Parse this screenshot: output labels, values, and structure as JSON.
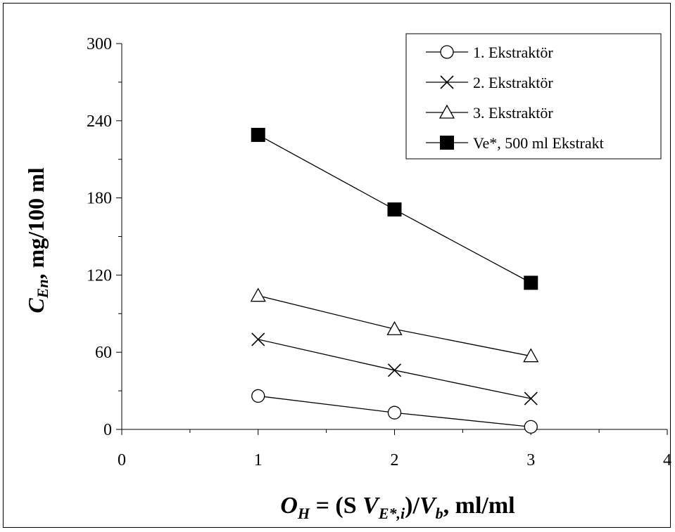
{
  "chart_data": {
    "type": "line",
    "x": [
      1,
      2,
      3
    ],
    "xlim": [
      0,
      4
    ],
    "ylim": [
      0,
      300
    ],
    "x_ticks": [
      "0",
      "1",
      "2",
      "3",
      "4"
    ],
    "y_ticks": [
      "0",
      "60",
      "120",
      "180",
      "240",
      "300"
    ],
    "xlabel": "O H = (S V E*,i)/V b, ml/ml",
    "ylabel": "CEn, mg/100 ml",
    "grid": false,
    "legend_position": "top-right",
    "series": [
      {
        "name": "1. Ekstraktör",
        "marker": "circle-open",
        "values": [
          26,
          13,
          2
        ]
      },
      {
        "name": "2. Ekstraktör",
        "marker": "x",
        "values": [
          70,
          46,
          24
        ]
      },
      {
        "name": "3. Ekstraktör",
        "marker": "triangle-open",
        "values": [
          104,
          78,
          57
        ]
      },
      {
        "name": "Ve*, 500 ml Ekstrakt",
        "marker": "square-filled",
        "values": [
          229,
          171,
          114
        ]
      }
    ]
  }
}
